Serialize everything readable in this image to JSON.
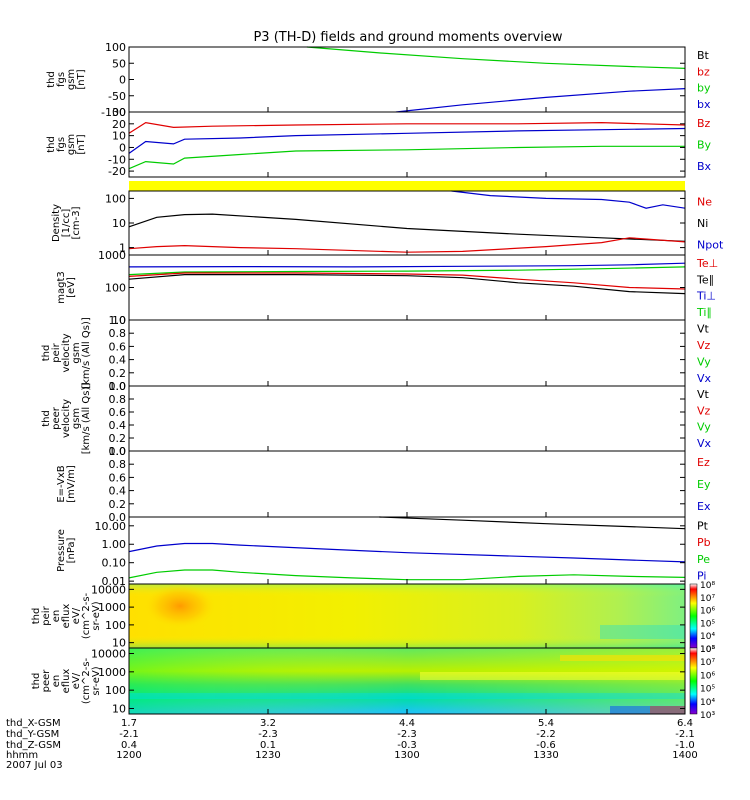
{
  "title": "P3 (TH-D) fields and ground moments overview",
  "colors": {
    "black": "#000000",
    "red": "#e00000",
    "green": "#00cc00",
    "blue": "#0000cc",
    "yellow": "#ffff00"
  },
  "chart_data": [
    {
      "type": "line",
      "id": "fgs_dsl",
      "ylabel_lines": [
        "thd",
        "fgs",
        "gsm",
        "[nT]"
      ],
      "ylim": [
        -100,
        100
      ],
      "ticks": [
        100,
        50,
        0,
        -50,
        -100
      ],
      "tick_labels": [
        "100",
        "50",
        "0",
        "-50",
        "-100"
      ],
      "legend": [
        {
          "label": "Bt",
          "color": "black"
        },
        {
          "label": "bz",
          "color": "red"
        },
        {
          "label": "by",
          "color": "green"
        },
        {
          "label": "bx",
          "color": "blue"
        }
      ],
      "series": [
        {
          "name": "by",
          "color": "green",
          "x": [
            0.32,
            0.45,
            0.6,
            0.75,
            0.9,
            1.0
          ],
          "y": [
            100,
            82,
            64,
            50,
            40,
            34
          ]
        },
        {
          "name": "bx",
          "color": "blue",
          "x": [
            0.48,
            0.6,
            0.75,
            0.9,
            1.0
          ],
          "y": [
            -100,
            -78,
            -55,
            -36,
            -28
          ]
        }
      ]
    },
    {
      "type": "line",
      "id": "fgs_gsm",
      "ylabel_lines": [
        "thd",
        "fgs",
        "gsm",
        "[nT]"
      ],
      "ylim": [
        -25,
        30
      ],
      "ticks": [
        30,
        20,
        10,
        0,
        -10,
        -20
      ],
      "tick_labels": [
        "30",
        "20",
        "10",
        "0",
        "-10",
        "-20"
      ],
      "legend": [
        {
          "label": "Bz",
          "color": "red"
        },
        {
          "label": "By",
          "color": "green"
        },
        {
          "label": "Bx",
          "color": "blue"
        }
      ],
      "series": [
        {
          "name": "Bz",
          "color": "red",
          "x": [
            0,
            0.03,
            0.08,
            0.15,
            0.3,
            0.5,
            0.7,
            0.85,
            1.0
          ],
          "y": [
            12,
            21,
            17,
            18,
            19,
            20,
            20,
            21,
            19
          ]
        },
        {
          "name": "By",
          "color": "green",
          "x": [
            0,
            0.03,
            0.08,
            0.1,
            0.2,
            0.3,
            0.5,
            0.7,
            0.85,
            1.0
          ],
          "y": [
            -18,
            -12,
            -14,
            -9,
            -6,
            -3,
            -2,
            0,
            1,
            1
          ]
        },
        {
          "name": "Bx",
          "color": "blue",
          "x": [
            0,
            0.03,
            0.08,
            0.1,
            0.2,
            0.3,
            0.5,
            0.7,
            0.85,
            1.0
          ],
          "y": [
            -5,
            5,
            3,
            7,
            8,
            10,
            12,
            14,
            15,
            16
          ]
        }
      ]
    },
    {
      "type": "band",
      "id": "flag_bar",
      "color": "yellow"
    },
    {
      "type": "line",
      "id": "density",
      "scale": "log",
      "ylabel_lines": [
        "Density",
        "[1/cc]",
        "[cm-3]"
      ],
      "ylim": [
        0.5,
        200
      ],
      "ticks": [
        100,
        10,
        1
      ],
      "tick_labels": [
        "100",
        "10",
        "1"
      ],
      "legend": [
        {
          "label": "Ne",
          "color": "red"
        },
        {
          "label": "Ni",
          "color": "black"
        },
        {
          "label": "Npot",
          "color": "blue"
        }
      ],
      "series": [
        {
          "name": "Ni",
          "color": "black",
          "x": [
            0,
            0.05,
            0.1,
            0.15,
            0.3,
            0.5,
            0.7,
            0.85,
            1.0
          ],
          "y": [
            7,
            17,
            22,
            23,
            14,
            6,
            3.5,
            2.5,
            1.8
          ]
        },
        {
          "name": "Ne",
          "color": "red",
          "x": [
            0,
            0.05,
            0.1,
            0.2,
            0.3,
            0.5,
            0.6,
            0.75,
            0.85,
            0.9,
            1.0
          ],
          "y": [
            0.9,
            1.1,
            1.2,
            1.0,
            0.9,
            0.65,
            0.7,
            1.1,
            1.6,
            2.5,
            1.7
          ]
        },
        {
          "name": "Npot",
          "color": "blue",
          "x": [
            0.58,
            0.65,
            0.75,
            0.85,
            0.9,
            0.93,
            0.96,
            1.0
          ],
          "y": [
            200,
            130,
            100,
            90,
            70,
            40,
            55,
            40
          ]
        }
      ]
    },
    {
      "type": "line",
      "id": "temperature",
      "scale": "log",
      "ylabel_lines": [
        "magt3",
        "[eV]"
      ],
      "ylim": [
        10,
        1000
      ],
      "ticks": [
        1000,
        100,
        10
      ],
      "tick_labels": [
        "1000",
        "100",
        "10"
      ],
      "legend": [
        {
          "label": "Te⊥",
          "color": "red"
        },
        {
          "label": "Te∥",
          "color": "black"
        },
        {
          "label": "Ti⊥",
          "color": "blue"
        },
        {
          "label": "Ti∥",
          "color": "green"
        }
      ],
      "series": [
        {
          "name": "Ti⊥",
          "color": "blue",
          "x": [
            0,
            0.2,
            0.4,
            0.6,
            0.8,
            0.9,
            1.0
          ],
          "y": [
            430,
            440,
            430,
            450,
            470,
            500,
            560
          ]
        },
        {
          "name": "Ti∥",
          "color": "green",
          "x": [
            0,
            0.1,
            0.3,
            0.5,
            0.7,
            0.85,
            1.0
          ],
          "y": [
            250,
            300,
            310,
            320,
            340,
            380,
            430
          ]
        },
        {
          "name": "Te⊥",
          "color": "red",
          "x": [
            0,
            0.1,
            0.3,
            0.5,
            0.6,
            0.7,
            0.8,
            0.9,
            1.0
          ],
          "y": [
            220,
            280,
            280,
            260,
            240,
            180,
            140,
            100,
            90
          ]
        },
        {
          "name": "Te∥",
          "color": "black",
          "x": [
            0,
            0.1,
            0.3,
            0.5,
            0.6,
            0.7,
            0.8,
            0.9,
            1.0
          ],
          "y": [
            180,
            250,
            250,
            230,
            200,
            140,
            110,
            75,
            65
          ]
        }
      ]
    },
    {
      "type": "line",
      "id": "peir_velocity",
      "ylabel_lines": [
        "thd",
        "peir",
        "velocity",
        "gsm",
        "[km/s (All Qs)]"
      ],
      "ylim": [
        0,
        1
      ],
      "ticks": [
        1.0,
        0.8,
        0.6,
        0.4,
        0.2,
        0.0
      ],
      "tick_labels": [
        "1.0",
        "0.8",
        "0.6",
        "0.4",
        "0.2",
        "0.0"
      ],
      "legend": [
        {
          "label": "Vt",
          "color": "black"
        },
        {
          "label": "Vz",
          "color": "red"
        },
        {
          "label": "Vy",
          "color": "green"
        },
        {
          "label": "Vx",
          "color": "blue"
        }
      ],
      "series": []
    },
    {
      "type": "line",
      "id": "peer_velocity",
      "ylabel_lines": [
        "thd",
        "peer",
        "velocity",
        "gsm",
        "[km/s (All Qs)]"
      ],
      "ylim": [
        0,
        1
      ],
      "ticks": [
        1.0,
        0.8,
        0.6,
        0.4,
        0.2,
        0.0
      ],
      "tick_labels": [
        "1.0",
        "0.8",
        "0.6",
        "0.4",
        "0.2",
        "0.0"
      ],
      "legend": [
        {
          "label": "Vt",
          "color": "black"
        },
        {
          "label": "Vz",
          "color": "red"
        },
        {
          "label": "Vy",
          "color": "green"
        },
        {
          "label": "Vx",
          "color": "blue"
        }
      ],
      "series": []
    },
    {
      "type": "line",
      "id": "efield",
      "ylabel_lines": [
        "E=-VxB",
        "[mV/m]"
      ],
      "ylim": [
        0,
        1
      ],
      "ticks": [
        1.0,
        0.8,
        0.6,
        0.4,
        0.2,
        0.0
      ],
      "tick_labels": [
        "1.0",
        "0.8",
        "0.6",
        "0.4",
        "0.2",
        "0.0"
      ],
      "legend": [
        {
          "label": "Ez",
          "color": "red"
        },
        {
          "label": "Ey",
          "color": "green"
        },
        {
          "label": "Ex",
          "color": "blue"
        }
      ],
      "series": []
    },
    {
      "type": "line",
      "id": "pressure",
      "scale": "log",
      "ylabel_lines": [
        "Pressure",
        "[nPa]"
      ],
      "ylim": [
        0.007,
        30
      ],
      "ticks": [
        10,
        1,
        0.1,
        0.01
      ],
      "tick_labels": [
        "10.00",
        "1.00",
        "0.10",
        "0.01"
      ],
      "legend": [
        {
          "label": "Pt",
          "color": "black"
        },
        {
          "label": "Pb",
          "color": "red"
        },
        {
          "label": "Pe",
          "color": "green"
        },
        {
          "label": "Pi",
          "color": "blue"
        }
      ],
      "series": [
        {
          "name": "Pt",
          "color": "black",
          "x": [
            0.45,
            0.6,
            0.75,
            0.9,
            1.0
          ],
          "y": [
            30,
            20,
            13,
            9,
            7
          ]
        },
        {
          "name": "Pi",
          "color": "blue",
          "x": [
            0,
            0.05,
            0.1,
            0.15,
            0.2,
            0.35,
            0.5,
            0.65,
            0.8,
            0.9,
            1.0
          ],
          "y": [
            0.4,
            0.8,
            1.1,
            1.1,
            0.9,
            0.55,
            0.35,
            0.25,
            0.18,
            0.14,
            0.11
          ]
        },
        {
          "name": "Pe",
          "color": "green",
          "x": [
            0,
            0.05,
            0.1,
            0.15,
            0.2,
            0.3,
            0.4,
            0.5,
            0.6,
            0.7,
            0.8,
            0.9,
            1.0
          ],
          "y": [
            0.015,
            0.03,
            0.04,
            0.04,
            0.03,
            0.02,
            0.015,
            0.012,
            0.012,
            0.018,
            0.022,
            0.018,
            0.016
          ]
        }
      ]
    },
    {
      "type": "heatmap",
      "id": "peir_spectrogram",
      "scale": "log",
      "ylabel_lines": [
        "thd",
        "peir",
        "en",
        "eflux",
        "eV/",
        "(cm^2-s-",
        "sr-eV)"
      ],
      "ylim": [
        5,
        20000
      ],
      "ticks": [
        10000,
        1000,
        100,
        10
      ],
      "tick_labels": [
        "10000",
        "1000",
        "100",
        "10"
      ],
      "colorbar_exponents": [
        "10⁸",
        "10⁷",
        "10⁶",
        "10⁵",
        "10⁴",
        "10³"
      ],
      "dominant_colors": [
        "yellow",
        "orange",
        "green-yellow",
        "cyan"
      ]
    },
    {
      "type": "heatmap",
      "id": "peer_spectrogram",
      "scale": "log",
      "ylabel_lines": [
        "thd",
        "peer",
        "en",
        "eflux",
        "eV/",
        "(cm^2-s-",
        "sr-eV)"
      ],
      "ylim": [
        5,
        20000
      ],
      "ticks": [
        10000,
        1000,
        100,
        10
      ],
      "tick_labels": [
        "10000",
        "1000",
        "100",
        "10"
      ],
      "colorbar_exponents": [
        "10⁸",
        "10⁷",
        "10⁶",
        "10⁵",
        "10⁴",
        "10³"
      ],
      "dominant_colors": [
        "green",
        "yellow",
        "cyan",
        "blue"
      ]
    }
  ],
  "x_axis": {
    "row_labels": [
      "thd_X-GSM",
      "thd_Y-GSM",
      "thd_Z-GSM",
      "hhmm",
      "2007 Jul 03"
    ],
    "columns": [
      {
        "x": 0.0,
        "values": [
          "1.7",
          "-2.1",
          "0.4",
          "1200"
        ]
      },
      {
        "x": 0.25,
        "values": [
          "3.2",
          "-2.3",
          "0.1",
          "1230"
        ]
      },
      {
        "x": 0.5,
        "values": [
          "4.4",
          "-2.3",
          "-0.3",
          "1300"
        ]
      },
      {
        "x": 0.75,
        "values": [
          "5.4",
          "-2.2",
          "-0.6",
          "1330"
        ]
      },
      {
        "x": 1.0,
        "values": [
          "6.4",
          "-2.1",
          "-1.0",
          "1400"
        ]
      }
    ]
  }
}
